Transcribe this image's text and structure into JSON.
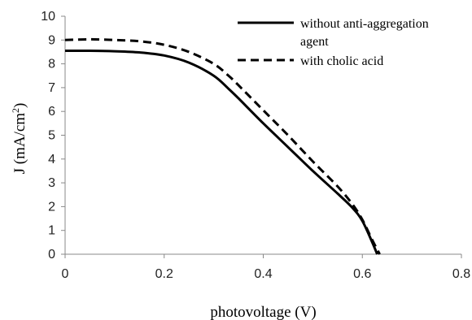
{
  "chart_data": {
    "type": "line",
    "xlabel": "photovoltage (V)",
    "ylabel_main": "J (mA/cm",
    "ylabel_sup": "2",
    "ylabel_end": ")",
    "xlim": [
      0,
      0.8
    ],
    "ylim": [
      0,
      10
    ],
    "x_ticks": [
      "0",
      "0.2",
      "0.4",
      "0.6",
      "0.8"
    ],
    "y_ticks": [
      "0",
      "1",
      "2",
      "3",
      "4",
      "5",
      "6",
      "7",
      "8",
      "9",
      "10"
    ],
    "grid": false,
    "legend_position": "top-right",
    "series": [
      {
        "name": "without anti-aggregation agent",
        "legend_lines": [
          "without anti-aggregation",
          "agent"
        ],
        "style": "solid",
        "color": "#000000",
        "x": [
          0,
          0.05,
          0.1,
          0.15,
          0.2,
          0.25,
          0.3,
          0.33,
          0.35,
          0.4,
          0.45,
          0.5,
          0.55,
          0.58,
          0.6,
          0.62,
          0.63
        ],
        "y": [
          8.55,
          8.55,
          8.53,
          8.48,
          8.35,
          8.05,
          7.5,
          6.95,
          6.55,
          5.5,
          4.5,
          3.5,
          2.55,
          1.95,
          1.4,
          0.5,
          0
        ]
      },
      {
        "name": "with cholic acid",
        "legend_lines": [
          "with cholic acid"
        ],
        "style": "dashed",
        "color": "#000000",
        "x": [
          0,
          0.05,
          0.1,
          0.15,
          0.2,
          0.25,
          0.3,
          0.33,
          0.35,
          0.4,
          0.45,
          0.5,
          0.55,
          0.58,
          0.6,
          0.62,
          0.635
        ],
        "y": [
          9.0,
          9.03,
          9.0,
          8.95,
          8.8,
          8.5,
          8.0,
          7.5,
          7.1,
          6.05,
          5.0,
          3.9,
          2.85,
          2.1,
          1.45,
          0.6,
          0
        ]
      }
    ]
  }
}
